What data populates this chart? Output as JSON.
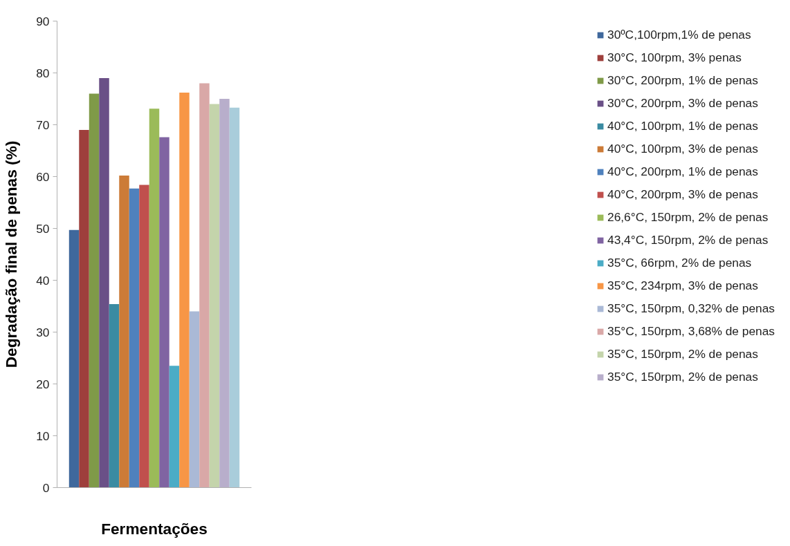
{
  "chart_data": {
    "type": "bar",
    "xlabel": "Fermentações",
    "ylabel": "Degradação final de penas (%)",
    "categories": [
      null
    ],
    "series": [
      {
        "name": "30ºC,100rpm,1% de penas",
        "color": "#3f689c",
        "values": [
          49.7
        ]
      },
      {
        "name": "30°C, 100rpm, 3% penas",
        "color": "#9e3f3c",
        "values": [
          69.0
        ]
      },
      {
        "name": "30°C, 200rpm, 1% de penas",
        "color": "#7f9a48",
        "values": [
          76.0
        ]
      },
      {
        "name": "30°C, 200rpm, 3% de penas",
        "color": "#6a5087",
        "values": [
          79.0
        ]
      },
      {
        "name": "40°C, 100rpm, 1% de penas",
        "color": "#3a8ba2",
        "values": [
          35.4
        ]
      },
      {
        "name": "40°C, 100rpm, 3% de penas",
        "color": "#cc7b37",
        "values": [
          60.2
        ]
      },
      {
        "name": "40°C, 200rpm, 1% de penas",
        "color": "#4f81bd",
        "values": [
          57.7
        ]
      },
      {
        "name": "40°C, 200rpm, 3% de penas",
        "color": "#c0504d",
        "values": [
          58.4
        ]
      },
      {
        "name": "26,6°C, 150rpm, 2% de penas",
        "color": "#9bbb59",
        "values": [
          73.1
        ]
      },
      {
        "name": "43,4°C, 150rpm, 2% de penas",
        "color": "#8064a2",
        "values": [
          67.6
        ]
      },
      {
        "name": "35°C, 66rpm, 2% de penas",
        "color": "#4bacc6",
        "values": [
          23.5
        ]
      },
      {
        "name": "35°C, 234rpm, 3% de penas",
        "color": "#f79646",
        "values": [
          76.2
        ]
      },
      {
        "name": "35°C, 150rpm, 0,32% de penas",
        "color": "#aab9d6",
        "values": [
          34.0
        ]
      },
      {
        "name": "35°C, 150rpm, 3,68% de penas",
        "color": "#d9a8a7",
        "values": [
          78.0
        ]
      },
      {
        "name": "35°C, 150rpm, 2% de penas",
        "color": "#c4d4ab",
        "values": [
          74.0
        ]
      },
      {
        "name": "35°C, 150rpm, 2% de penas",
        "color": "#b8aecb",
        "values": [
          75.0
        ]
      },
      {
        "color": "#a9cddb",
        "values": [
          73.3
        ]
      }
    ],
    "ylim": [
      0,
      90
    ],
    "yticks": [
      0,
      10,
      20,
      30,
      40,
      50,
      60,
      70,
      80,
      90
    ],
    "grid": false,
    "legend": "right"
  }
}
